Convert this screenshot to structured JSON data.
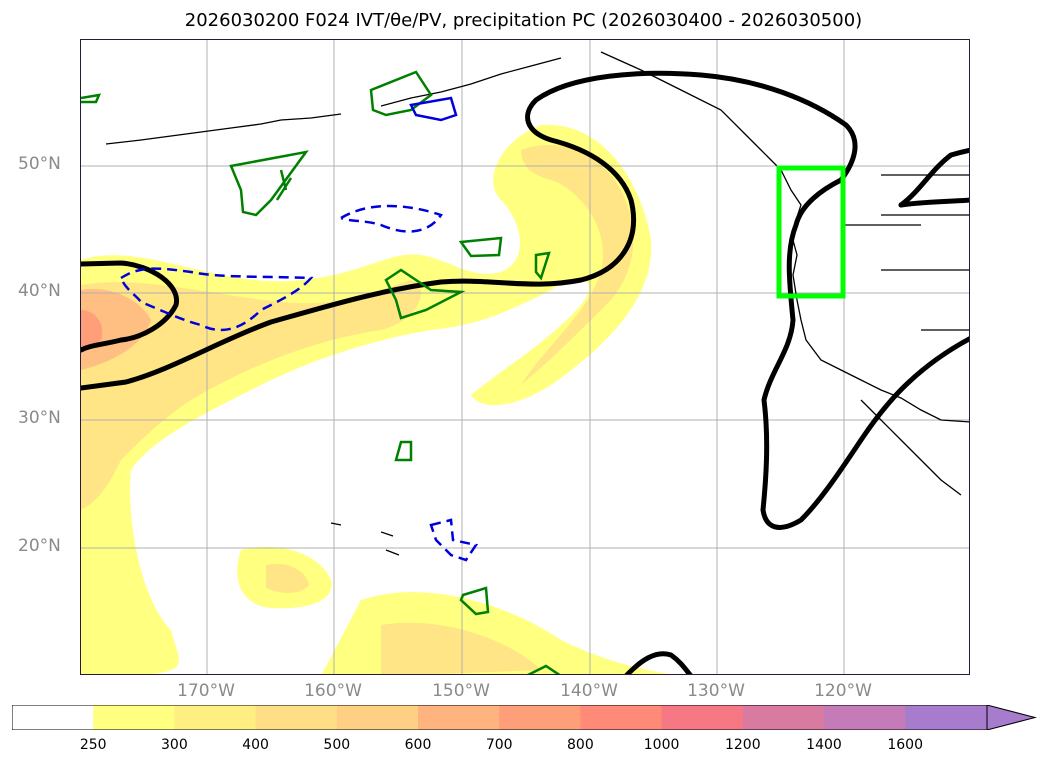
{
  "title": "2026030200 F024 IVT/θe/PV, precipitation PC (2026030400 - 2026030500)",
  "map": {
    "lat_labels": [
      "50°N",
      "40°N",
      "30°N",
      "20°N"
    ],
    "lon_labels": [
      "170°W",
      "160°W",
      "150°W",
      "140°W",
      "130°W",
      "120°W"
    ]
  },
  "colorbar": {
    "ticks": [
      "250",
      "300",
      "400",
      "500",
      "600",
      "700",
      "800",
      "1000",
      "1200",
      "1400",
      "1600"
    ],
    "colors": [
      "#ffffff",
      "#ffff80",
      "#ffef82",
      "#ffdf85",
      "#ffcf84",
      "#ffb47f",
      "#ff9f79",
      "#ff8a77",
      "#f77885",
      "#d97aa0",
      "#c47bb8",
      "#a77ccc"
    ],
    "extend": "max"
  },
  "colors": {
    "ivt_fill_1": "#ffff80",
    "ivt_fill_2": "#ffdf85",
    "ivt_fill_3": "#ffb47f",
    "ivt_fill_4": "#ff9f79",
    "theta_contour": "#000000",
    "pv_contour_green": "#008000",
    "pv_contour_blue": "#0000dd",
    "box": "#00ff00"
  }
}
